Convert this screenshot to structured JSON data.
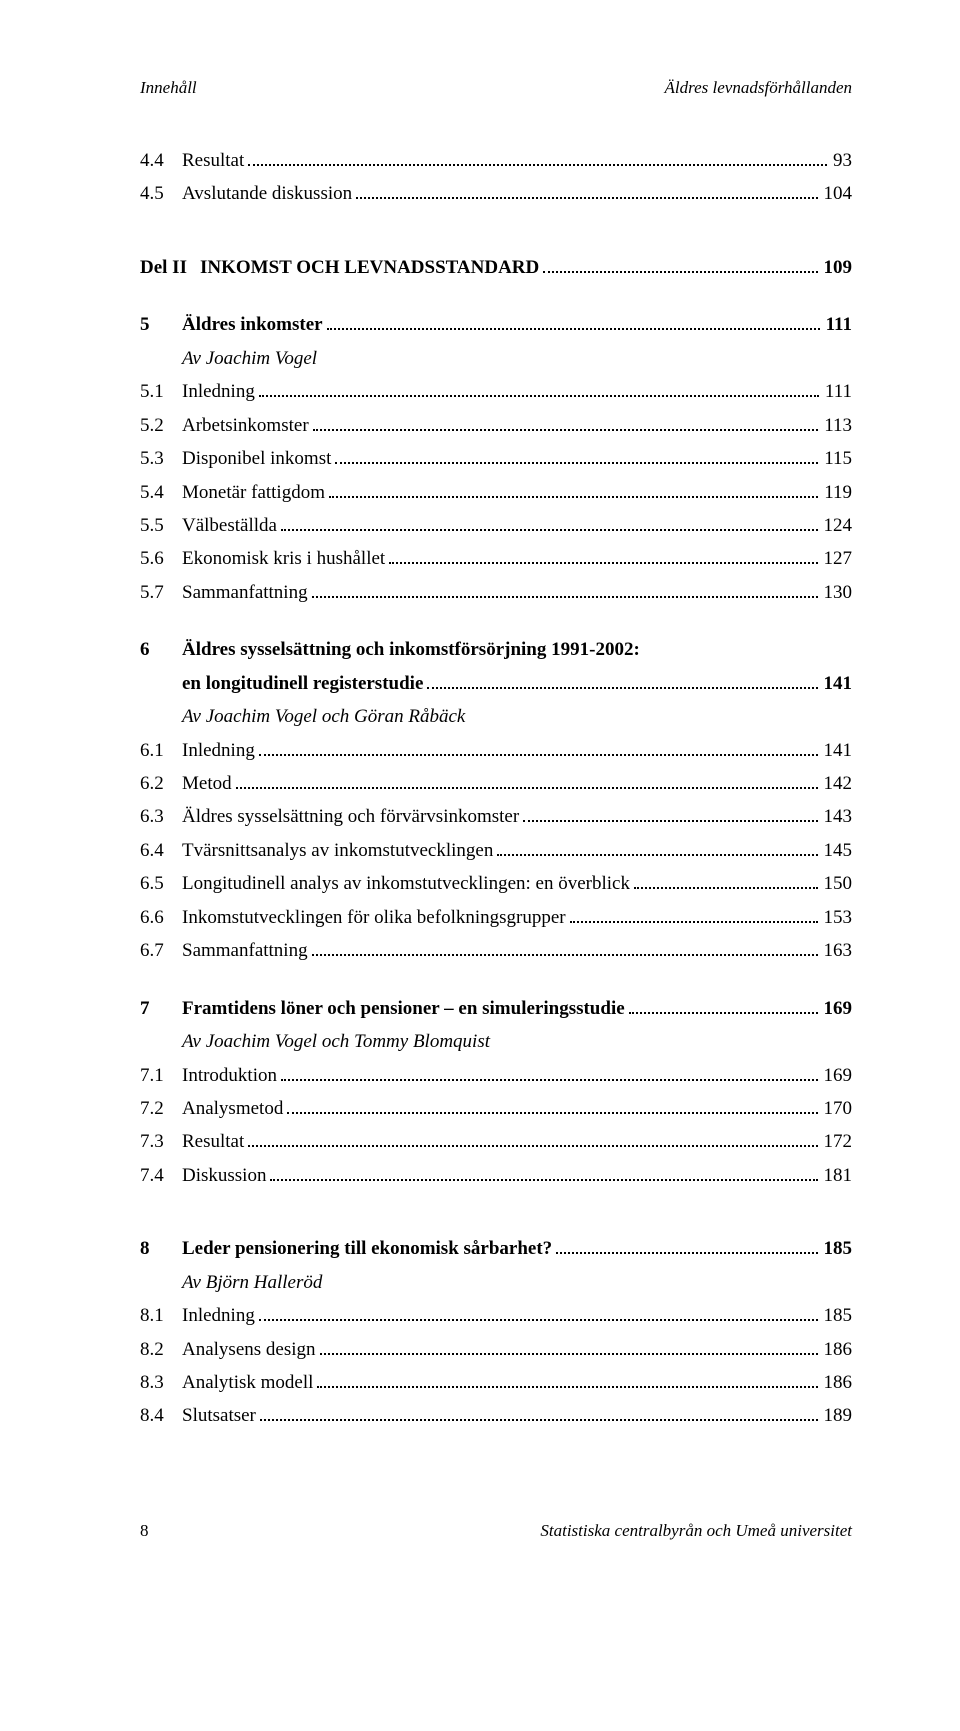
{
  "header": {
    "left": "Innehåll",
    "right": "Äldres levnadsförhållanden"
  },
  "footer": {
    "page": "8",
    "right": "Statistiska centralbyrån och Umeå universitet"
  },
  "entries": [
    {
      "type": "row",
      "num": "4.4",
      "title": "Resultat",
      "page": "93"
    },
    {
      "type": "row",
      "num": "4.5",
      "title": "Avslutande diskussion",
      "page": "104"
    },
    {
      "type": "gap-lg"
    },
    {
      "type": "row",
      "bold": true,
      "num": "Del II",
      "numWide": true,
      "title": "INKOMST OCH LEVNADSSTANDARD",
      "page": "109"
    },
    {
      "type": "gap"
    },
    {
      "type": "row",
      "bold": true,
      "num": "5",
      "title": "Äldres inkomster",
      "page": "111"
    },
    {
      "type": "italic",
      "title": "Av Joachim Vogel"
    },
    {
      "type": "row",
      "num": "5.1",
      "title": "Inledning",
      "page": "111"
    },
    {
      "type": "row",
      "num": "5.2",
      "title": "Arbetsinkomster",
      "page": "113"
    },
    {
      "type": "row",
      "num": "5.3",
      "title": "Disponibel inkomst",
      "page": "115"
    },
    {
      "type": "row",
      "num": "5.4",
      "title": "Monetär fattigdom",
      "page": "119"
    },
    {
      "type": "row",
      "num": "5.5",
      "title": "Välbeställda",
      "page": "124"
    },
    {
      "type": "row",
      "num": "5.6",
      "title": "Ekonomisk kris i hushållet",
      "page": "127"
    },
    {
      "type": "row",
      "num": "5.7",
      "title": "Sammanfattning",
      "page": "130"
    },
    {
      "type": "gap"
    },
    {
      "type": "row-2line",
      "bold": true,
      "num": "6",
      "line1": "Äldres sysselsättning och inkomstförsörjning 1991-2002:",
      "line2": "en longitudinell registerstudie",
      "page": "141"
    },
    {
      "type": "italic",
      "title": "Av Joachim Vogel och Göran Råbäck"
    },
    {
      "type": "row",
      "num": "6.1",
      "title": "Inledning",
      "page": "141"
    },
    {
      "type": "row",
      "num": "6.2",
      "title": "Metod",
      "page": "142"
    },
    {
      "type": "row",
      "num": "6.3",
      "title": "Äldres sysselsättning och förvärvsinkomster",
      "page": "143"
    },
    {
      "type": "row",
      "num": "6.4",
      "title": "Tvärsnittsanalys av inkomstutvecklingen",
      "page": "145"
    },
    {
      "type": "row",
      "num": "6.5",
      "title": "Longitudinell analys av inkomstutvecklingen: en överblick",
      "page": "150"
    },
    {
      "type": "row",
      "num": "6.6",
      "title": "Inkomstutvecklingen för olika befolkningsgrupper",
      "page": "153"
    },
    {
      "type": "row",
      "num": "6.7",
      "title": "Sammanfattning",
      "page": "163"
    },
    {
      "type": "gap"
    },
    {
      "type": "row",
      "bold": true,
      "num": "7",
      "title": "Framtidens löner och pensioner – en simuleringsstudie",
      "page": "169"
    },
    {
      "type": "italic",
      "title": "Av Joachim Vogel och Tommy Blomquist"
    },
    {
      "type": "row",
      "num": "7.1",
      "title": "Introduktion",
      "page": "169"
    },
    {
      "type": "row",
      "num": "7.2",
      "title": "Analysmetod",
      "page": "170"
    },
    {
      "type": "row",
      "num": "7.3",
      "title": "Resultat",
      "page": "172"
    },
    {
      "type": "row",
      "num": "7.4",
      "title": "Diskussion",
      "page": "181"
    },
    {
      "type": "gap-lg"
    },
    {
      "type": "row",
      "bold": true,
      "num": "8",
      "title": "Leder pensionering till ekonomisk sårbarhet?",
      "page": "185"
    },
    {
      "type": "italic",
      "title": "Av Björn Halleröd"
    },
    {
      "type": "row",
      "num": "8.1",
      "title": "Inledning",
      "page": "185"
    },
    {
      "type": "row",
      "num": "8.2",
      "title": "Analysens design",
      "page": "186"
    },
    {
      "type": "row",
      "num": "8.3",
      "title": "Analytisk modell",
      "page": "186"
    },
    {
      "type": "row",
      "num": "8.4",
      "title": "Slutsatser",
      "page": "189"
    }
  ]
}
